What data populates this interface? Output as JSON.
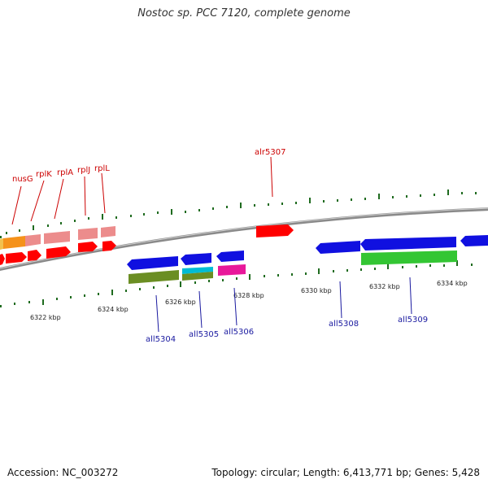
{
  "title": "Nostoc sp. PCC 7120, complete genome",
  "footer": {
    "accession": "Accession: NC_003272",
    "info": "Topology: circular; Length: 6,413,771 bp; Genes: 5,428"
  },
  "colors": {
    "backbone": "#8a8a8a",
    "tick": "#1f6b1f",
    "forward_label": "#cc0000",
    "reverse_label": "#1a1aa0",
    "forward_gene": "#ff0000",
    "reverse_gene": "#1010e0"
  },
  "ticks": [
    {
      "label": "6322 kbp"
    },
    {
      "label": "6324 kbp"
    },
    {
      "label": "6326 kbp"
    },
    {
      "label": "6328 kbp"
    },
    {
      "label": "6330 kbp"
    },
    {
      "label": "6332 kbp"
    },
    {
      "label": "6334 kbp"
    }
  ],
  "forward_labels": [
    "nusG",
    "rplK",
    "rplA",
    "rplJ",
    "rplL",
    "alr5307"
  ],
  "reverse_labels": [
    "all5304",
    "all5305",
    "all5306",
    "all5308",
    "all5309"
  ],
  "genes": [
    {
      "strand": "forward",
      "color": "#ff0000",
      "icon": "arrow-right"
    },
    {
      "strand": "forward",
      "color": "#ff0000",
      "icon": "arrow-right"
    },
    {
      "strand": "forward",
      "color": "#ff0000",
      "icon": "arrow-right"
    },
    {
      "strand": "forward",
      "color": "#ff0000",
      "icon": "arrow-right"
    },
    {
      "strand": "forward",
      "color": "#ff0000",
      "icon": "arrow-right"
    },
    {
      "strand": "forward",
      "color": "#ff0000",
      "icon": "arrow-right"
    },
    {
      "strand": "reverse",
      "color": "#1010e0",
      "icon": "arrow-left"
    },
    {
      "strand": "reverse",
      "color": "#1010e0",
      "icon": "arrow-left"
    },
    {
      "strand": "reverse",
      "color": "#1010e0",
      "icon": "arrow-left"
    },
    {
      "strand": "reverse",
      "color": "#1010e0",
      "icon": "arrow-left"
    },
    {
      "strand": "reverse",
      "color": "#1010e0",
      "icon": "arrow-left"
    },
    {
      "strand": "reverse",
      "color": "#1010e0",
      "icon": "arrow-left"
    }
  ]
}
